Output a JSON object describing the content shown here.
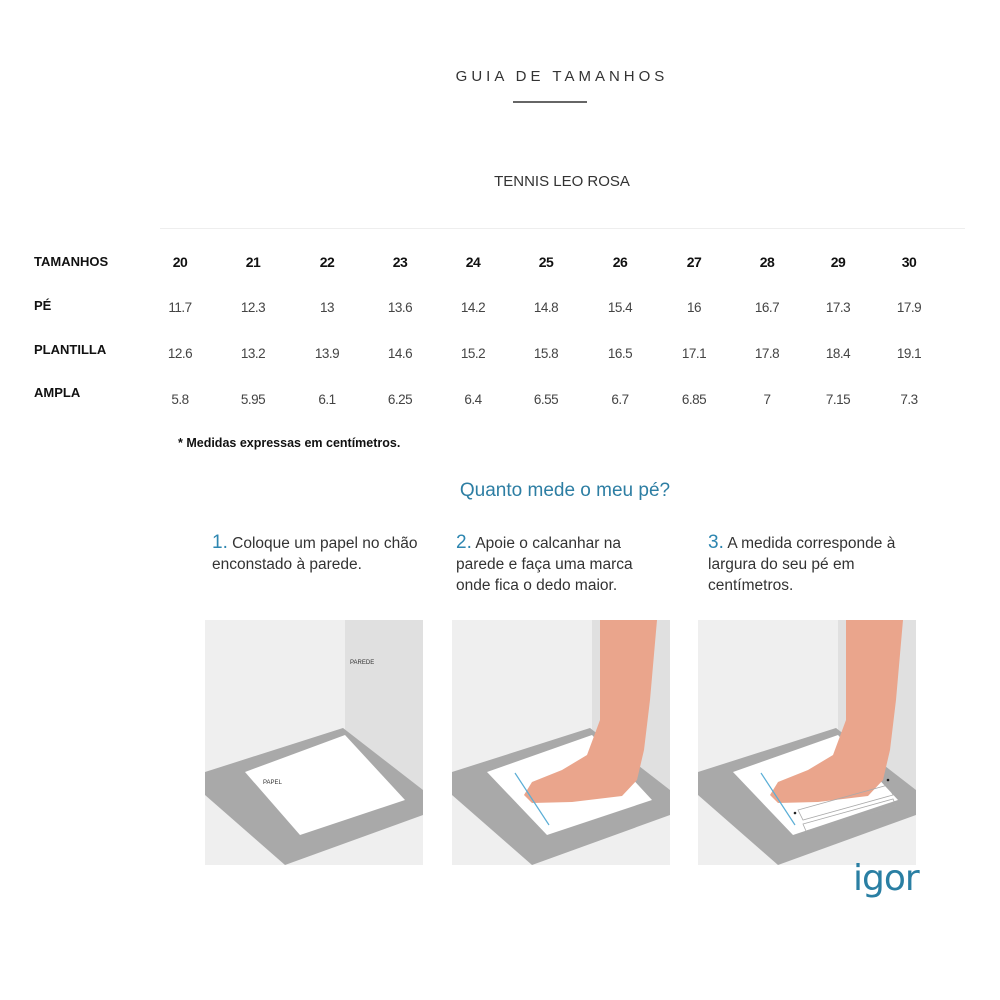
{
  "header": {
    "title": "GUIA DE TAMANHOS",
    "product": "TENNIS LEO ROSA"
  },
  "table": {
    "rows": [
      {
        "label": "TAMANHOS",
        "values": [
          "20",
          "21",
          "22",
          "23",
          "24",
          "25",
          "26",
          "27",
          "28",
          "29",
          "30"
        ]
      },
      {
        "label": "PÉ",
        "values": [
          "11.7",
          "12.3",
          "13",
          "13.6",
          "14.2",
          "14.8",
          "15.4",
          "16",
          "16.7",
          "17.3",
          "17.9"
        ]
      },
      {
        "label": "PLANTILLA",
        "values": [
          "12.6",
          "13.2",
          "13.9",
          "14.6",
          "15.2",
          "15.8",
          "16.5",
          "17.1",
          "17.8",
          "18.4",
          "19.1"
        ]
      },
      {
        "label": "AMPLA",
        "values": [
          "5.8",
          "5.95",
          "6.1",
          "6.25",
          "6.4",
          "6.55",
          "6.7",
          "6.85",
          "7",
          "7.15",
          "7.3"
        ]
      }
    ],
    "note": "* Medidas expressas em centímetros."
  },
  "how": {
    "title": "Quanto mede o meu pé?",
    "steps": [
      {
        "num": "1.",
        "text": "Coloque um papel no chão enconstado à parede."
      },
      {
        "num": "2.",
        "text": "Apoie o calcanhar na parede e faça uma marca onde fica o dedo maior."
      },
      {
        "num": "3.",
        "text": "A medida corresponde à largura do seu pé em centímetros."
      }
    ],
    "labels": {
      "wall": "PAREDE",
      "paper": "PAPEL"
    }
  },
  "logo": "igor",
  "colors": {
    "accent": "#2d7ea3",
    "skin": "#eaa58c",
    "floor": "#a9a9a9"
  }
}
